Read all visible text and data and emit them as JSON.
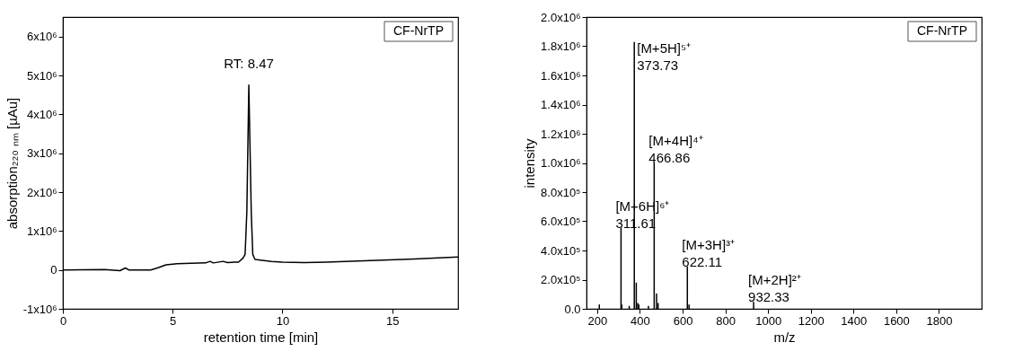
{
  "chart_data": [
    {
      "type": "line",
      "xlabel": "retention time [min]",
      "ylabel": "absorption₂₂₀ ₙₘ [µAu]",
      "x": [
        0,
        1.9,
        2.6,
        2.85,
        3.0,
        4.0,
        4.3,
        4.7,
        5.2,
        6.5,
        6.7,
        6.85,
        7.3,
        7.5,
        7.8,
        8.0,
        8.2,
        8.3,
        8.38,
        8.47,
        8.58,
        8.65,
        8.75,
        9.5,
        10,
        11,
        12,
        14,
        16,
        18
      ],
      "series": [
        {
          "color": "#000000",
          "values": [
            0,
            10000,
            -20000,
            50000,
            0,
            0,
            50000,
            130000,
            160000,
            180000,
            220000,
            180000,
            220000,
            190000,
            200000,
            200000,
            300000,
            400000,
            1500000,
            4750000,
            1500000,
            400000,
            270000,
            220000,
            200000,
            190000,
            200000,
            240000,
            280000,
            330000
          ]
        }
      ],
      "xlim": [
        0,
        18
      ],
      "xticks": [
        0,
        5,
        10,
        15
      ],
      "ylim": [
        -1000000,
        6500000
      ],
      "yticks": [
        {
          "value": -1000000,
          "label": "-1x10⁶"
        },
        0,
        {
          "value": 1000000,
          "label": "1x10⁶"
        },
        {
          "value": 2000000,
          "label": "2x10⁶"
        },
        {
          "value": 3000000,
          "label": "3x10⁶"
        },
        {
          "value": 4000000,
          "label": "4x10⁶"
        },
        {
          "value": 5000000,
          "label": "5x10⁶"
        },
        {
          "value": 6000000,
          "label": "6x10⁶"
        }
      ],
      "grid": false,
      "annotations": [
        "CF-NrTP",
        {
          "text": "RT: 8.47",
          "x": 8.47,
          "y": 4750000
        }
      ]
    },
    {
      "type": "bar",
      "xlabel": "m/z",
      "ylabel": "intensity",
      "x": [
        210,
        311.61,
        315,
        350,
        373.73,
        383,
        390,
        395,
        440,
        466.86,
        478,
        485,
        622.11,
        630,
        932.33
      ],
      "series": [
        {
          "color": "#000000",
          "values": [
            30000,
            556000,
            30000,
            20000,
            1830000,
            180000,
            40000,
            30000,
            20000,
            1005000,
            105000,
            40000,
            290000,
            30000,
            48000
          ]
        }
      ],
      "xlim": [
        150,
        2000
      ],
      "xticks": [
        200,
        400,
        600,
        800,
        1000,
        1200,
        1400,
        1600,
        1800
      ],
      "ylim": [
        0,
        2000000
      ],
      "yticks": [
        {
          "value": 0,
          "label": "0.0"
        },
        {
          "value": 200000,
          "label": "2.0x10⁵"
        },
        {
          "value": 400000,
          "label": "4.0x10⁵"
        },
        {
          "value": 600000,
          "label": "6.0x10⁵"
        },
        {
          "value": 800000,
          "label": "8.0x10⁵"
        },
        {
          "value": 1000000,
          "label": "1.0x10⁶"
        },
        {
          "value": 1200000,
          "label": "1.2x10⁶"
        },
        {
          "value": 1400000,
          "label": "1.4x10⁶"
        },
        {
          "value": 1600000,
          "label": "1.6x10⁶"
        },
        {
          "value": 1800000,
          "label": "1.8x10⁶"
        },
        {
          "value": 2000000,
          "label": "2.0x10⁶"
        }
      ],
      "grid": false,
      "annotations": [
        "CF-NrTP",
        {
          "text": "[M+6H]⁶⁺\n311.61",
          "x": 311.61,
          "y": 556000
        },
        {
          "text": "[M+5H]⁵⁺\n373.73",
          "x": 373.73,
          "y": 1830000
        },
        {
          "text": "[M+4H]⁴⁺\n466.86",
          "x": 466.86,
          "y": 1005000
        },
        {
          "text": "[M+3H]³⁺\n622.11",
          "x": 622.11,
          "y": 290000
        },
        {
          "text": "[M+2H]²⁺\n932.33",
          "x": 932.33,
          "y": 48000
        }
      ]
    }
  ]
}
